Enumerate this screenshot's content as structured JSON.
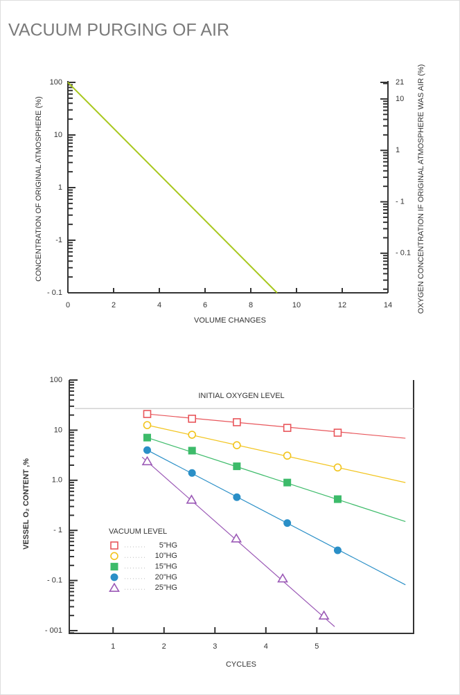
{
  "title": "VACUUM PURGING OF AIR",
  "chart_data": [
    {
      "type": "line",
      "ylabel": "CONCENTRATION OF ORIGINAL ATMOSPHERE (%)",
      "y2label": "OXYGEN CONCENTRATION IF ORIGINAL ATMOSPHERE WAS AIR (%)",
      "xlabel": "VOLUME CHANGES",
      "xlim": [
        0,
        14
      ],
      "xticks": [
        0,
        2,
        4,
        6,
        8,
        10,
        12,
        14
      ],
      "ylim": [
        0.01,
        100
      ],
      "yscale": "log",
      "yticks": [
        100,
        10,
        1,
        {
          "value": 0.1,
          "label": "-1"
        },
        {
          "value": 0.01,
          "label": "- 0.1"
        }
      ],
      "y2lim": [
        0.0017,
        21
      ],
      "y2scale": "log",
      "y2ticks": [
        21,
        10,
        1,
        {
          "value": 0.1,
          "label": "- 1"
        },
        {
          "value": 0.01,
          "label": "- 0.1"
        }
      ],
      "series": [
        {
          "color": "#a8c81e",
          "x": [
            0,
            9.15
          ],
          "values": [
            100,
            0.01
          ]
        }
      ]
    },
    {
      "type": "scatter",
      "ylabel": "VESSEL O₂ CONTENT ,%",
      "xlabel": "CYCLES",
      "xlim": [
        0.14,
        6.9
      ],
      "xticks": [
        1,
        2,
        3,
        4,
        5
      ],
      "ylim": [
        0.00088,
        100
      ],
      "yscale": "log",
      "yticks": [
        100,
        10,
        {
          "value": 1,
          "label": "1.0"
        },
        {
          "value": 0.1,
          "label": "- 1"
        },
        {
          "value": 0.01,
          "label": "- 0.1"
        },
        {
          "value": 0.001,
          "label": "- 001"
        }
      ],
      "annotation": {
        "text": "INITIAL OXYGEN LEVEL",
        "value": 27
      },
      "legend_title": "VACUUM LEVEL",
      "legend": "lower left",
      "series": [
        {
          "name": "5”HG",
          "color": "#e8555a",
          "marker": "square-open",
          "x": [
            1.67,
            2.55,
            3.43,
            4.42,
            5.41
          ],
          "values": [
            21,
            16.9,
            14.4,
            11.1,
            8.9
          ],
          "trend": {
            "x": [
              1.67,
              6.74
            ],
            "values": [
              21,
              6.9
            ]
          }
        },
        {
          "name": "10”HG",
          "color": "#f2c41c",
          "marker": "circle-open",
          "x": [
            1.67,
            2.55,
            3.43,
            4.42,
            5.41
          ],
          "values": [
            12.6,
            8.1,
            5.0,
            3.1,
            1.8
          ],
          "trend": {
            "x": [
              1.67,
              6.74
            ],
            "values": [
              12.6,
              0.9
            ]
          }
        },
        {
          "name": "15”HG",
          "color": "#3dbb6a",
          "marker": "square",
          "x": [
            1.67,
            2.55,
            3.43,
            4.42,
            5.41
          ],
          "values": [
            7.1,
            3.9,
            1.9,
            0.9,
            0.42
          ],
          "trend": {
            "x": [
              1.67,
              6.74
            ],
            "values": [
              7.1,
              0.15
            ]
          }
        },
        {
          "name": "20”HG",
          "color": "#2a8fc7",
          "marker": "circle",
          "x": [
            1.67,
            2.55,
            3.43,
            4.42,
            5.41
          ],
          "values": [
            4.0,
            1.4,
            0.46,
            0.14,
            0.04
          ],
          "trend": {
            "x": [
              1.67,
              6.74
            ],
            "values": [
              4.0,
              0.0082
            ]
          }
        },
        {
          "name": "25”HG",
          "color": "#9b59b6",
          "marker": "triangle-open",
          "x": [
            1.67,
            2.54,
            3.42,
            4.33,
            5.14
          ],
          "values": [
            2.4,
            0.41,
            0.069,
            0.011,
            0.002
          ],
          "trend": {
            "x": [
              1.57,
              5.35
            ],
            "values": [
              2.9,
              0.0012
            ]
          }
        }
      ]
    }
  ]
}
